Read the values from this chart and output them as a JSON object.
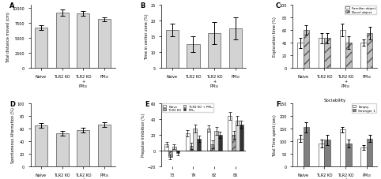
{
  "A": {
    "label": "A",
    "ylabel": "Total distance moved (cm)",
    "categories": [
      "Naive",
      "TLR2 KO",
      "TLR2 KO\n+\nPM₁₀",
      "PM₁₀"
    ],
    "values": [
      6700,
      9200,
      9000,
      8100
    ],
    "errors": [
      400,
      500,
      400,
      300
    ],
    "ylim": [
      0,
      10500
    ],
    "yticks": [
      0,
      2500,
      5000,
      7500,
      10000
    ]
  },
  "B": {
    "label": "B",
    "ylabel": "Time in center zone (%)",
    "categories": [
      "Naive",
      "TLR2 KO",
      "TLR2 KO\n+\nPM₁₀",
      "PM₁₀"
    ],
    "values": [
      17,
      12.5,
      16,
      17.5
    ],
    "errors": [
      2.0,
      2.5,
      3.5,
      3.5
    ],
    "ylim": [
      5,
      25
    ],
    "yticks": [
      5,
      10,
      15,
      20,
      25
    ]
  },
  "C": {
    "label": "C",
    "ylabel": "Exploration time (%)",
    "categories": [
      "Naive",
      "TLR2 KO",
      "TLR2 KO\n+\nPM₁₀",
      "PM₁₀"
    ],
    "familiar_values": [
      40,
      47,
      60,
      40
    ],
    "familiar_errors": [
      8,
      8,
      10,
      5
    ],
    "novel_values": [
      60,
      47,
      40,
      55
    ],
    "novel_errors": [
      8,
      8,
      10,
      10
    ],
    "ylim": [
      0,
      100
    ],
    "yticks": [
      0,
      20,
      40,
      60,
      80,
      100
    ]
  },
  "D": {
    "label": "D",
    "ylabel": "Spontaneous Alternation (%)",
    "categories": [
      "Naive",
      "TLR2 KO",
      "TLR2 KO\n+\nPM₁₀",
      "PM₁₀"
    ],
    "values": [
      65,
      52,
      57,
      66
    ],
    "errors": [
      4,
      4,
      4,
      4
    ],
    "ylim": [
      0,
      100
    ],
    "yticks": [
      0,
      20,
      40,
      60,
      80,
      100
    ]
  },
  "E": {
    "label": "E",
    "ylabel": "Prepulse Inhibition (%)",
    "categories": [
      "73",
      "79",
      "82",
      "86"
    ],
    "naive_values": [
      8,
      22,
      28,
      44
    ],
    "naive_errors": [
      3,
      4,
      4,
      5
    ],
    "tlr2ko_values": [
      -8,
      6,
      8,
      20
    ],
    "tlr2ko_errors": [
      3,
      4,
      5,
      5
    ],
    "tlr2ko_pm_values": [
      5,
      28,
      25,
      38
    ],
    "tlr2ko_pm_errors": [
      3,
      5,
      5,
      6
    ],
    "pm_values": [
      -3,
      15,
      20,
      33
    ],
    "pm_errors": [
      3,
      4,
      4,
      5
    ],
    "ylim": [
      -20,
      60
    ],
    "yticks": [
      -20,
      0,
      20,
      40,
      60
    ]
  },
  "F": {
    "label": "F",
    "title": "Sociability",
    "ylabel": "Total Time spent (sec)",
    "categories": [
      "Naive",
      "TLR2 KO",
      "TLR2 KO\n+\nPM₁₀",
      "PM₁₀"
    ],
    "empty_values": [
      110,
      90,
      145,
      75
    ],
    "empty_errors": [
      15,
      15,
      12,
      10
    ],
    "stranger_values": [
      155,
      105,
      90,
      110
    ],
    "stranger_errors": [
      20,
      20,
      15,
      15
    ],
    "ylim": [
      0,
      250
    ],
    "yticks": [
      0,
      50,
      100,
      150,
      200,
      250
    ]
  },
  "bar_color": "#d3d3d3",
  "edge_color": "#555555",
  "familiar_color": "#ffffff",
  "novel_color": "#c0c0c0",
  "empty_color": "#ffffff",
  "stranger_color": "#808080",
  "naive_color": "#ffffff",
  "tlr2ko_color": "#aaaaaa",
  "tlr2ko_pm_color": "#dddddd",
  "pm_color": "#333333"
}
